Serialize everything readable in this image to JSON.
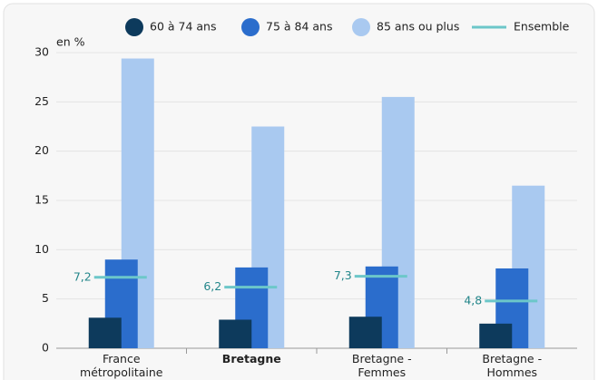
{
  "chart_data": {
    "type": "bar",
    "y_unit_label": "en %",
    "categories": [
      "France métropolitaine",
      "Bretagne",
      "Bretagne - Femmes",
      "Bretagne - Hommes"
    ],
    "series": [
      {
        "name": "60 à 74 ans",
        "color": "#0d3a5c",
        "values": [
          3.1,
          2.9,
          3.2,
          2.5
        ]
      },
      {
        "name": "75 à 84 ans",
        "color": "#2b6dcc",
        "values": [
          9.0,
          8.2,
          8.3,
          8.1
        ]
      },
      {
        "name": "85 ans ou plus",
        "color": "#a9c9f0",
        "values": [
          29.4,
          22.5,
          25.5,
          16.5
        ]
      },
      {
        "name": "Ensemble",
        "color": "#6cc7c9",
        "type": "hline",
        "values": [
          7.2,
          6.2,
          7.3,
          4.8
        ],
        "value_labels": [
          "7,2",
          "6,2",
          "7,3",
          "4,8"
        ]
      }
    ],
    "ylim": [
      0,
      30
    ],
    "yticks": [
      0,
      5,
      10,
      15,
      20,
      25,
      30
    ],
    "grid": true
  }
}
